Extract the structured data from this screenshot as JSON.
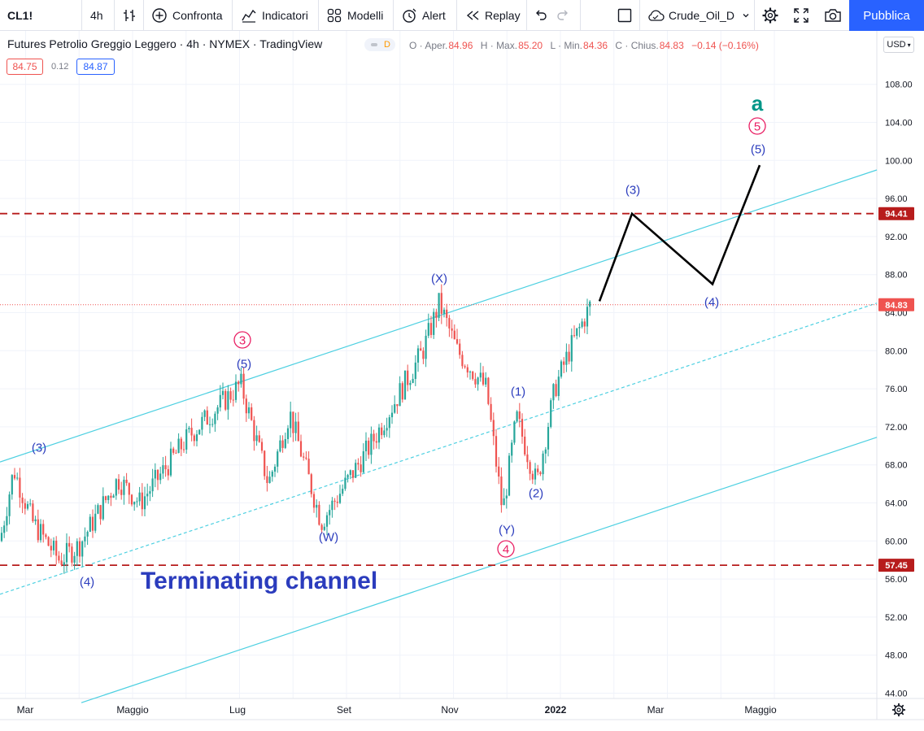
{
  "toolbar": {
    "symbol": "CL1!",
    "interval": "4h",
    "compare_label": "Confronta",
    "indicators_label": "Indicatori",
    "templates_label": "Modelli",
    "alert_label": "Alert",
    "replay_label": "Replay",
    "layout_name": "Crude_Oil_D",
    "publish_label": "Pubblica"
  },
  "legend": {
    "title": "Futures Petrolio Greggio Leggero · 4h · NYMEX · TradingView",
    "badge": "D",
    "open_label": "O · Aper.",
    "open": "84.96",
    "high_label": "H · Max.",
    "high": "85.20",
    "low_label": "L · Min.",
    "low": "84.36",
    "close_label": "C · Chius.",
    "close": "84.83",
    "change": "−0.14 (−0.16%)",
    "sell_price": "84.75",
    "spread": "0.12",
    "buy_price": "84.87"
  },
  "currency": "USD",
  "colors": {
    "accent": "#2962ff",
    "up": "#26a69a",
    "down": "#ef5350",
    "channel": "#4dd0e1",
    "level": "#b71c1c",
    "wave_blue": "#2b3cbd",
    "wave_pink": "#e91e63",
    "wave_green": "#009688"
  },
  "icons": [
    "bars-icon",
    "plus-circle-icon",
    "indicators-icon",
    "templates-icon",
    "alarm-clock-icon",
    "rewind-icon",
    "undo-icon",
    "redo-icon",
    "square-icon",
    "cloud-icon",
    "chevron-down-icon",
    "gear-icon",
    "fullscreen-icon",
    "camera-icon",
    "settings-icon"
  ],
  "chart_data": {
    "type": "candlestick",
    "title": "Futures Petrolio Greggio Leggero",
    "y_axis": {
      "ticks": [
        "108.00",
        "104.00",
        "100.00",
        "96.00",
        "92.00",
        "88.00",
        "84.00",
        "80.00",
        "76.00",
        "72.00",
        "68.00",
        "64.00",
        "60.00",
        "56.00",
        "52.00",
        "48.00",
        "44.00"
      ],
      "range": [
        43,
        111
      ]
    },
    "x_axis": {
      "ticks": [
        "Mar",
        "Maggio",
        "Lug",
        "Set",
        "Nov",
        "2022",
        "Mar",
        "Maggio"
      ]
    },
    "price_tags": [
      {
        "label": "94.41",
        "value": 94.41,
        "color": "#b71c1c"
      },
      {
        "label": "84.83",
        "value": 84.83,
        "color": "#ef5350"
      },
      {
        "label": "57.45",
        "value": 57.45,
        "color": "#b71c1c"
      }
    ],
    "horizontal_levels": [
      94.41,
      57.45
    ],
    "last_price": 84.83,
    "price_path": [
      {
        "x": "Feb 2021",
        "y": 60
      },
      {
        "x": "Mar 2021",
        "y": 67.5
      },
      {
        "x": "Mar 2021",
        "y": 62
      },
      {
        "x": "Apr 2021",
        "y": 58
      },
      {
        "x": "Apr 2021",
        "y": 59.5
      },
      {
        "x": "May 2021",
        "y": 66.5
      },
      {
        "x": "May 2021",
        "y": 64
      },
      {
        "x": "Jun 2021",
        "y": 71
      },
      {
        "x": "Jul 2021",
        "y": 76.5
      },
      {
        "x": "Jul 2021",
        "y": 66
      },
      {
        "x": "Aug 2021",
        "y": 73.5
      },
      {
        "x": "Aug 2021",
        "y": 62
      },
      {
        "x": "Sep 2021",
        "y": 70
      },
      {
        "x": "Oct 2021",
        "y": 80
      },
      {
        "x": "Oct 2021",
        "y": 85
      },
      {
        "x": "Nov 2021",
        "y": 80
      },
      {
        "x": "Nov 2021",
        "y": 76
      },
      {
        "x": "Dec 2021",
        "y": 63
      },
      {
        "x": "Dec 2021",
        "y": 73
      },
      {
        "x": "Dec 2021",
        "y": 66
      },
      {
        "x": "Jan 2022",
        "y": 76
      },
      {
        "x": "Jan 2022",
        "y": 80
      },
      {
        "x": "Feb 2022",
        "y": 85
      }
    ],
    "projection": [
      {
        "x": "Feb 2022",
        "y": 85.2
      },
      {
        "x": "Feb 2022",
        "y": 94.4
      },
      {
        "x": "Apr 2022",
        "y": 87
      },
      {
        "x": "May 2022",
        "y": 99.5
      }
    ],
    "wave_labels": [
      {
        "text": "(3)",
        "color": "blue",
        "x": "Mar 2021",
        "y": "upper"
      },
      {
        "text": "(4)",
        "color": "blue",
        "x": "Apr 2021",
        "y": "lower"
      },
      {
        "text": "3",
        "color": "pink",
        "circled": true,
        "x": "Jul 2021",
        "y": "upper"
      },
      {
        "text": "(5)",
        "color": "blue",
        "x": "Jul 2021",
        "y": "upper"
      },
      {
        "text": "(W)",
        "color": "blue",
        "x": "Aug 2021",
        "y": "lower"
      },
      {
        "text": "(X)",
        "color": "blue",
        "x": "Oct 2021",
        "y": "upper"
      },
      {
        "text": "(1)",
        "color": "blue",
        "x": "Dec 2021",
        "y": "upper"
      },
      {
        "text": "(2)",
        "color": "blue",
        "x": "Dec 2021",
        "y": "lower"
      },
      {
        "text": "(Y)",
        "color": "blue",
        "x": "Dec 2021",
        "y": "lower"
      },
      {
        "text": "4",
        "color": "pink",
        "circled": true,
        "x": "Dec 2021",
        "y": "lower"
      },
      {
        "text": "(3)",
        "color": "blue",
        "x": "Feb 2022",
        "y": "upper"
      },
      {
        "text": "(4)",
        "color": "blue",
        "x": "Apr 2022",
        "y": "lower"
      },
      {
        "text": "(5)",
        "color": "blue",
        "x": "May 2022",
        "y": "upper"
      },
      {
        "text": "5",
        "color": "pink",
        "circled": true,
        "x": "May 2022",
        "y": "upper"
      },
      {
        "text": "a",
        "color": "green",
        "x": "May 2022",
        "y": "upper"
      }
    ],
    "annotation": "Terminating channel"
  }
}
